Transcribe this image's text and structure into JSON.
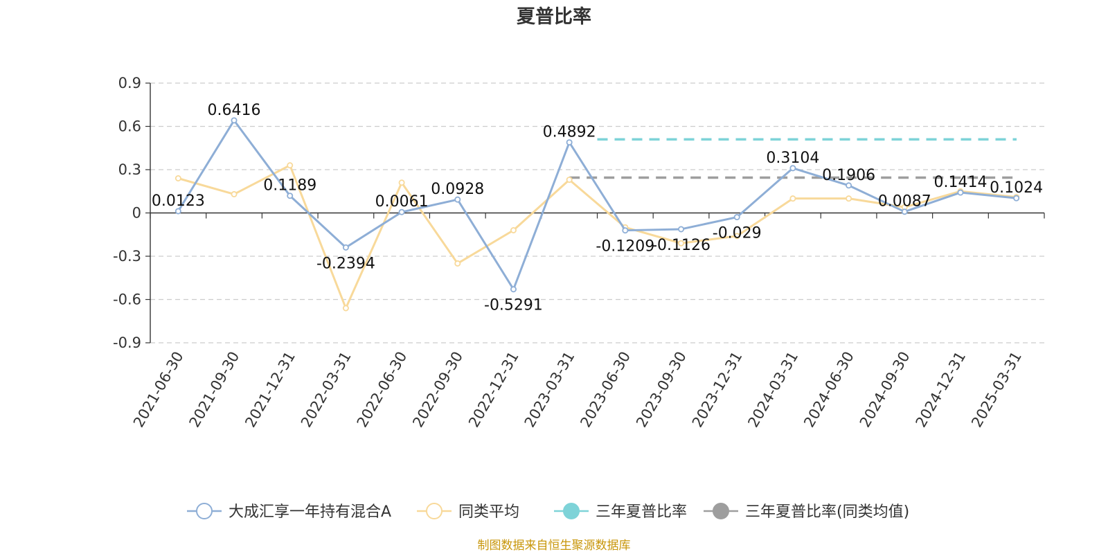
{
  "chart_data": {
    "type": "line",
    "title": "夏普比率",
    "x": [
      "2021-06-30",
      "2021-09-30",
      "2021-12-31",
      "2022-03-31",
      "2022-06-30",
      "2022-09-30",
      "2022-12-31",
      "2023-03-31",
      "2023-06-30",
      "2023-09-30",
      "2023-12-31",
      "2024-03-31",
      "2024-06-30",
      "2024-09-30",
      "2024-12-31",
      "2025-03-31"
    ],
    "ylim": [
      -0.9,
      0.9
    ],
    "yticks": [
      "0.9",
      "0.6",
      "0.3",
      "0",
      "-0.3",
      "-0.6",
      "-0.9"
    ],
    "grid": true,
    "legend_position": "bottom",
    "series": [
      {
        "name": "大成汇享一年持有混合A",
        "color": "#8eaed6",
        "values": [
          0.0123,
          0.6416,
          0.1189,
          -0.2394,
          0.0061,
          0.0928,
          -0.5291,
          0.4892,
          -0.1209,
          -0.1126,
          -0.029,
          0.3104,
          0.1906,
          0.0087,
          0.1414,
          0.1024
        ],
        "labels": [
          "0.0123",
          "0.6416",
          "0.1189",
          "-0.2394",
          "0.0061",
          "0.0928",
          "-0.5291",
          "0.4892",
          "-0.1209",
          "-0.1126",
          "-0.029",
          "0.3104",
          "0.1906",
          "0.0087",
          "0.1414",
          "0.1024"
        ]
      },
      {
        "name": "同类平均",
        "color": "#f8d99a",
        "values": [
          0.24,
          0.13,
          0.33,
          -0.66,
          0.21,
          -0.35,
          -0.12,
          0.23,
          -0.1,
          -0.21,
          -0.16,
          0.1,
          0.1,
          0.04,
          0.15,
          0.11
        ]
      },
      {
        "name": "三年夏普比率",
        "color": "#7ed3d8",
        "style": "dashed",
        "value": 0.51,
        "start_index": 7.5
      },
      {
        "name": "三年夏普比率(同类均值)",
        "color": "#9e9e9e",
        "style": "dashed",
        "value": 0.245,
        "start_index": 7
      }
    ],
    "source": "制图数据来自恒生聚源数据库"
  }
}
